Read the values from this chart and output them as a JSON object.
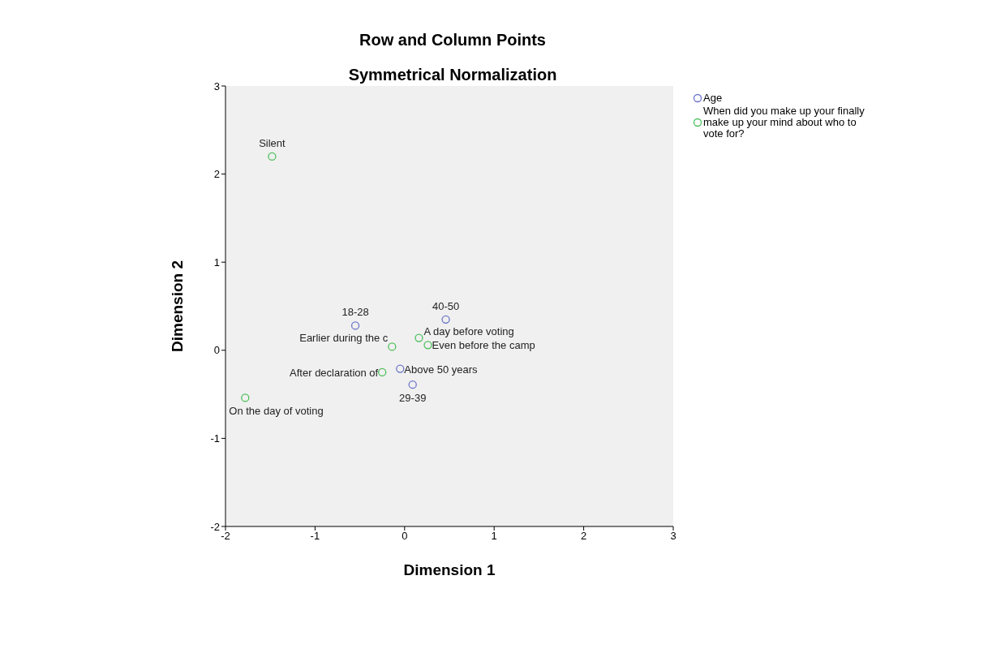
{
  "chart_data": {
    "type": "scatter",
    "title": "Row and Column Points",
    "subtitle": "Symmetrical Normalization",
    "xlabel": "Dimension 1",
    "ylabel": "Dimension 2",
    "xlim": [
      -2,
      3
    ],
    "xticks": [
      -2,
      -1,
      0,
      1,
      2,
      3
    ],
    "ylim": [
      -2,
      3
    ],
    "yticks": [
      -2,
      -1,
      0,
      1,
      2,
      3
    ],
    "grid": false,
    "legend": "top right",
    "marker": "circle",
    "series": [
      {
        "name": "Age",
        "color": "#6b74c8",
        "x": [
          -0.55,
          0.46,
          -0.05,
          0.09
        ],
        "values": [
          0.28,
          0.35,
          -0.21,
          -0.39
        ],
        "value_labels": [
          "18-28",
          "40-50",
          "Above 50 years",
          "29-39"
        ]
      },
      {
        "name": "When did you make up your finally make up your mind about who to vote for?",
        "color": "#4cbf5a",
        "x": [
          -1.48,
          -1.78,
          -0.25,
          0.16,
          -0.14,
          0.26
        ],
        "values": [
          2.2,
          -0.54,
          -0.25,
          0.14,
          0.04,
          0.06
        ],
        "value_labels": [
          "Silent",
          "On the day of voting",
          "After declaration of",
          "A day before voting",
          "Earlier during the c",
          "Even before the camp"
        ]
      }
    ]
  }
}
